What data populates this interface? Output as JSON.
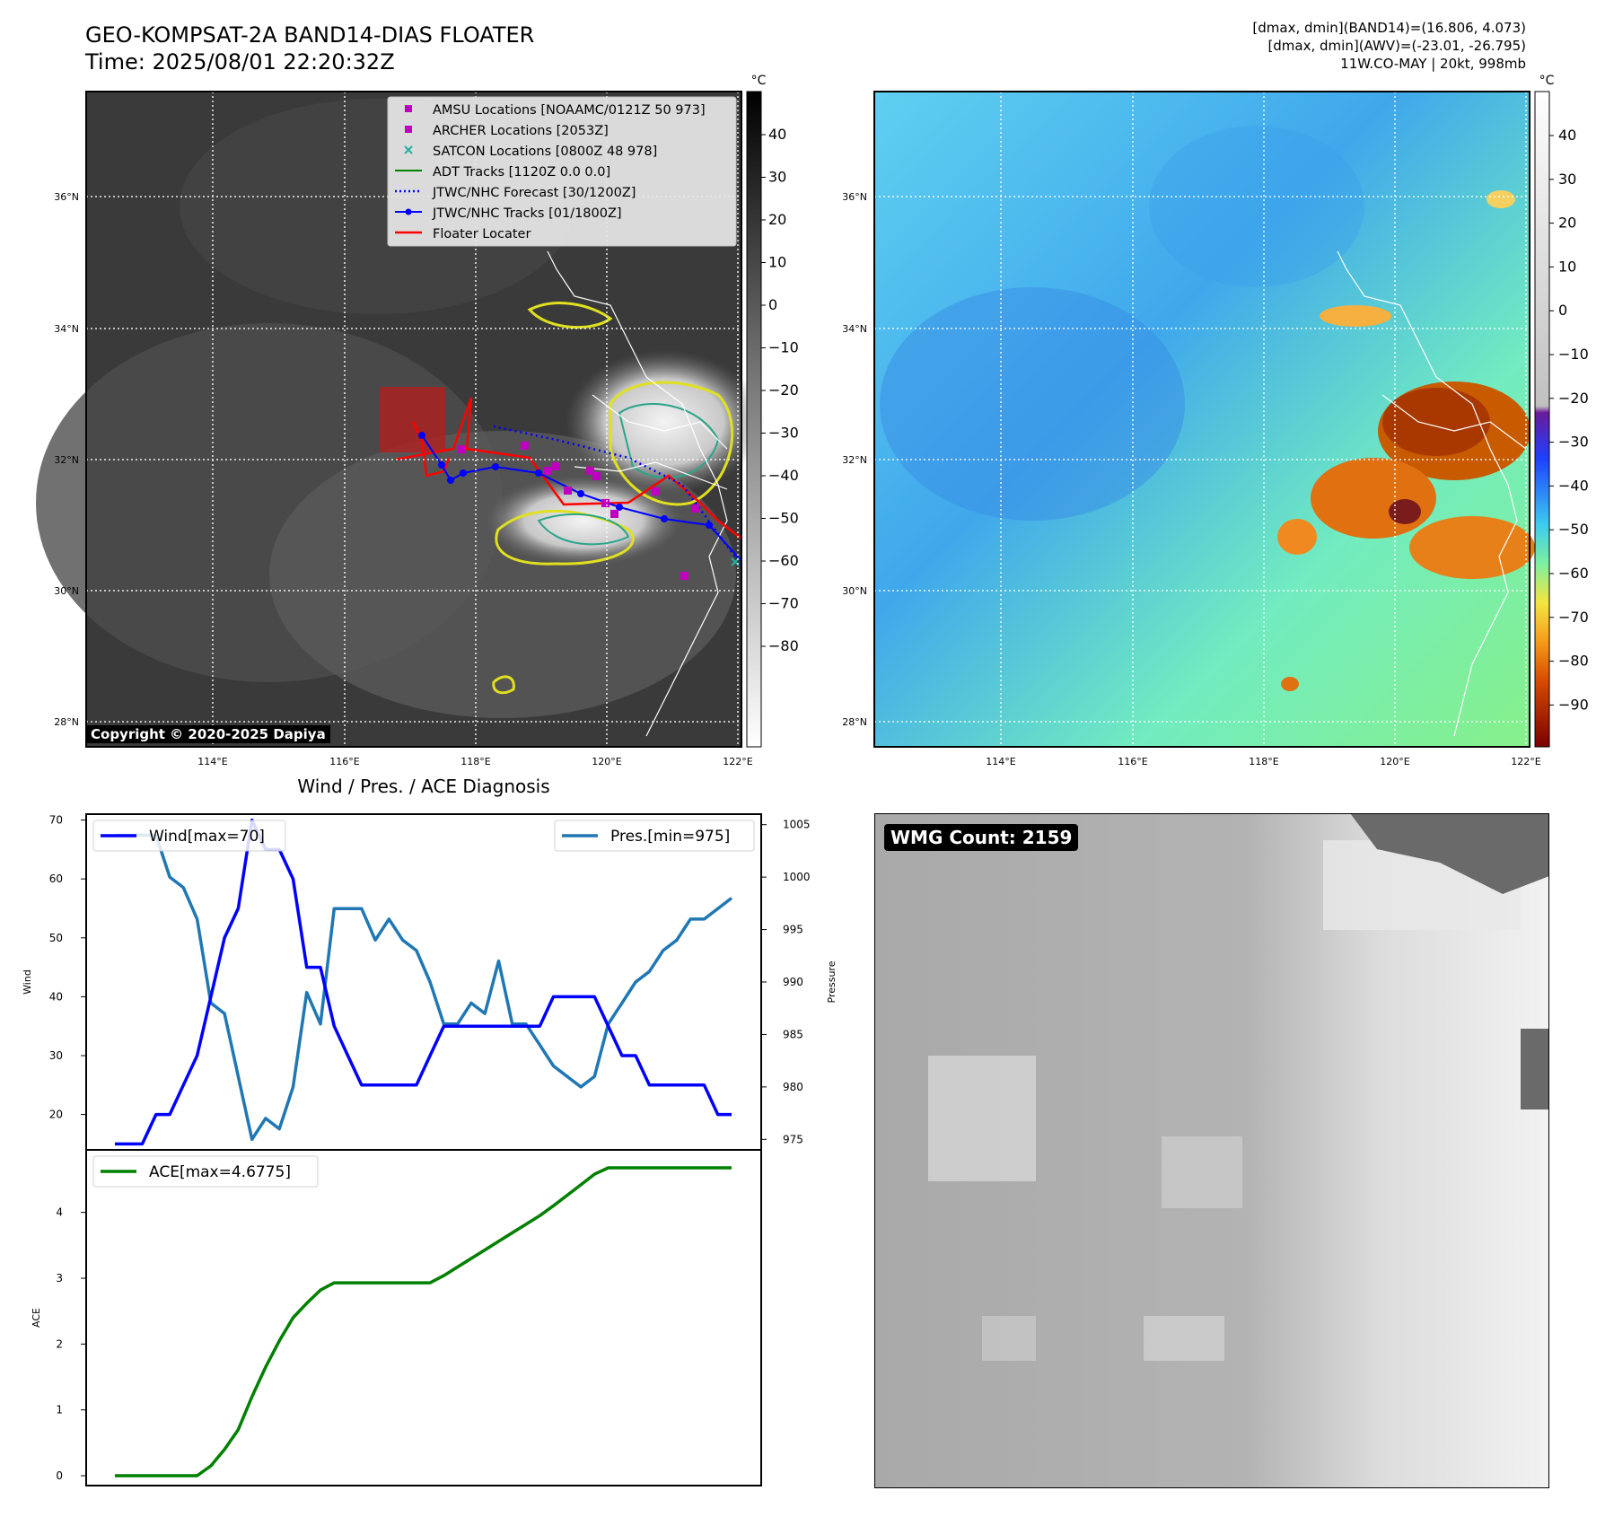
{
  "header": {
    "title_line1": "GEO-KOMPSAT-2A BAND14-DIAS FLOATER",
    "title_line2": "Time: 2025/08/01 22:20:32Z",
    "meta_line1": "[dmax, dmin](BAND14)=(16.806, 4.073)",
    "meta_line2": "[dmax, dmin](AWV)=(-23.01, -26.795)",
    "meta_line3": "11W.CO-MAY | 20kt, 998mb"
  },
  "maps": {
    "lat_labels": [
      "36°N",
      "34°N",
      "32°N",
      "30°N",
      "28°N"
    ],
    "lon_labels": [
      "114°E",
      "116°E",
      "118°E",
      "120°E",
      "122°E"
    ],
    "copyright": "Copyright © 2020-2025 Dapiya",
    "left_colorbar": {
      "unit": "°C",
      "ticks": [
        "40",
        "30",
        "20",
        "10",
        "0",
        "−10",
        "−20",
        "−30",
        "−40",
        "−50",
        "−60",
        "−70",
        "−80"
      ]
    },
    "right_colorbar": {
      "unit": "°C",
      "ticks": [
        "40",
        "30",
        "20",
        "10",
        "0",
        "−10",
        "−20",
        "−30",
        "−40",
        "−50",
        "−60",
        "−70",
        "−80",
        "−90"
      ]
    },
    "legend": [
      {
        "label": "AMSU Locations [NOAAMC/0121Z 50 973]",
        "marker": "square",
        "color": "#c000c0"
      },
      {
        "label": "ARCHER Locations [2053Z]",
        "marker": "square",
        "color": "#c000c0"
      },
      {
        "label": "SATCON Locations [0800Z 48 978]",
        "marker": "x",
        "color": "#20b0a0"
      },
      {
        "label": "ADT Tracks [1120Z 0.0 0.0]",
        "marker": "line",
        "color": "#008000"
      },
      {
        "label": "JTWC/NHC Forecast [30/1200Z]",
        "marker": "dotted",
        "color": "#0000ff"
      },
      {
        "label": "JTWC/NHC Tracks [01/1800Z]",
        "marker": "line-dot",
        "color": "#0000ff"
      },
      {
        "label": "Floater Locater",
        "marker": "line",
        "color": "#ff0000"
      }
    ]
  },
  "diag": {
    "title": "Wind / Pres. / ACE Diagnosis",
    "wind_ylabel": "Wind",
    "pres_ylabel": "Pressure",
    "ace_ylabel": "ACE",
    "wind_legend": "Wind[max=70]",
    "pres_legend": "Pres.[min=975]",
    "ace_legend": "ACE[max=4.6775]",
    "wind_ticks": [
      "70",
      "60",
      "50",
      "40",
      "30",
      "20"
    ],
    "pres_ticks": [
      "1005",
      "1000",
      "995",
      "990",
      "985",
      "980",
      "975"
    ],
    "ace_ticks": [
      "4",
      "3",
      "2",
      "1",
      "0"
    ],
    "wind_color": "#0000ff",
    "pres_color": "#1f77b4",
    "ace_color": "#008000"
  },
  "wmg": {
    "label": "WMG Count: 2159"
  },
  "chart_data": [
    {
      "type": "line",
      "title": "Wind / Pres. / ACE Diagnosis",
      "ylabel": "Wind",
      "ylim": [
        14,
        71
      ],
      "series": [
        {
          "name": "Wind[max=70]",
          "values": [
            15,
            15,
            15,
            20,
            20,
            25,
            30,
            40,
            50,
            55,
            70,
            65,
            65,
            60,
            45,
            45,
            35,
            30,
            25,
            25,
            25,
            25,
            25,
            30,
            35,
            35,
            35,
            35,
            35,
            35,
            35,
            35,
            40,
            40,
            40,
            40,
            35,
            30,
            30,
            25,
            25,
            25,
            25,
            25,
            20,
            20
          ]
        }
      ]
    },
    {
      "type": "line",
      "ylabel": "Pressure",
      "ylim": [
        974,
        1006
      ],
      "series": [
        {
          "name": "Pres.[min=975]",
          "values": [
            1004,
            1004,
            1004,
            1004,
            1000,
            999,
            996,
            988,
            987,
            981,
            975,
            977,
            976,
            980,
            989,
            986,
            997,
            997,
            997,
            994,
            996,
            994,
            993,
            990,
            986,
            986,
            988,
            987,
            992,
            986,
            986,
            984,
            982,
            981,
            980,
            981,
            986,
            988,
            990,
            991,
            993,
            994,
            996,
            996,
            997,
            998
          ]
        }
      ]
    },
    {
      "type": "line",
      "ylabel": "ACE",
      "ylim": [
        -0.15,
        4.95
      ],
      "series": [
        {
          "name": "ACE[max=4.6775]",
          "values": [
            0,
            0,
            0,
            0,
            0,
            0,
            0,
            0.15,
            0.4,
            0.7,
            1.2,
            1.65,
            2.05,
            2.4,
            2.62,
            2.82,
            2.93,
            2.93,
            2.93,
            2.93,
            2.93,
            2.93,
            2.93,
            2.93,
            3.04,
            3.17,
            3.3,
            3.43,
            3.56,
            3.69,
            3.82,
            3.95,
            4.1,
            4.26,
            4.42,
            4.58,
            4.6775,
            4.6775,
            4.6775,
            4.6775,
            4.6775,
            4.6775,
            4.6775,
            4.6775,
            4.6775,
            4.6775
          ]
        }
      ]
    }
  ]
}
